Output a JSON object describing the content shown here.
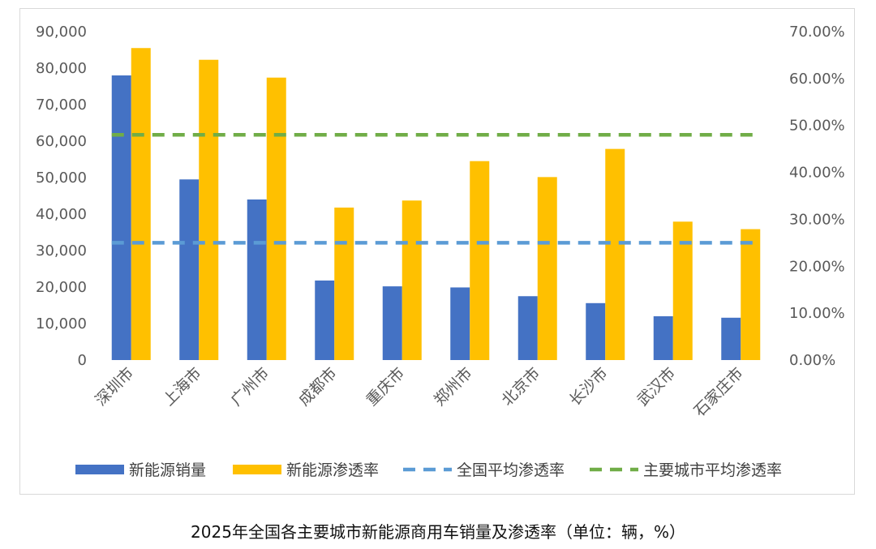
{
  "caption": "2025年全国各主要城市新能源商用车销量及渗透率（单位：辆，%）",
  "colors": {
    "sales": "#4472C4",
    "penetration": "#FFC000",
    "national_avg": "#5B9BD5",
    "major_avg": "#70AD47"
  },
  "chart_data": {
    "type": "bar",
    "categories": [
      "深圳市",
      "上海市",
      "广州市",
      "成都市",
      "重庆市",
      "郑州市",
      "北京市",
      "长沙市",
      "武汉市",
      "石家庄市"
    ],
    "series": [
      {
        "name": "新能源销量",
        "axis": "left",
        "type": "bar",
        "values": [
          78000,
          49500,
          44000,
          21800,
          20200,
          19900,
          17500,
          15600,
          12000,
          11600
        ]
      },
      {
        "name": "新能源渗透率",
        "axis": "right",
        "type": "bar",
        "values": [
          66.5,
          64.0,
          60.2,
          32.5,
          34.0,
          42.4,
          39.0,
          45.0,
          29.5,
          27.9
        ]
      },
      {
        "name": "全国平均渗透率",
        "axis": "right",
        "type": "line",
        "style": "dashed",
        "values": [
          25.0,
          25.0,
          25.0,
          25.0,
          25.0,
          25.0,
          25.0,
          25.0,
          25.0,
          25.0
        ]
      },
      {
        "name": "主要城市平均渗透率",
        "axis": "right",
        "type": "line",
        "style": "dashed",
        "values": [
          48.0,
          48.0,
          48.0,
          48.0,
          48.0,
          48.0,
          48.0,
          48.0,
          48.0,
          48.0
        ]
      }
    ],
    "y_left": {
      "ylim": [
        0,
        90000
      ],
      "ticks": [
        "0",
        "10,000",
        "20,000",
        "30,000",
        "40,000",
        "50,000",
        "60,000",
        "70,000",
        "80,000",
        "90,000"
      ]
    },
    "y_right": {
      "ylim": [
        0,
        70
      ],
      "ticks": [
        "0.00%",
        "10.00%",
        "20.00%",
        "30.00%",
        "40.00%",
        "50.00%",
        "60.00%",
        "70.00%"
      ]
    },
    "grid": false,
    "legend_position": "bottom"
  }
}
